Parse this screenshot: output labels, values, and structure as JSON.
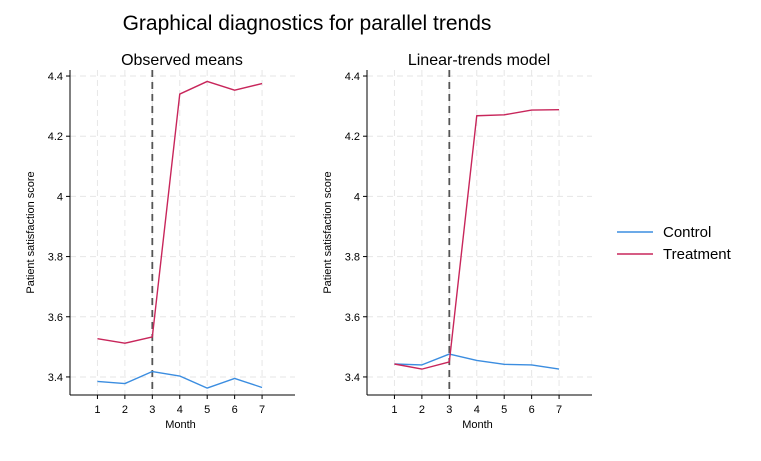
{
  "title": "Graphical diagnostics for parallel trends",
  "colors": {
    "control": "#3b8de0",
    "treatment": "#c8265b",
    "vline": "#555555"
  },
  "legend": {
    "placement": "right",
    "entries": [
      "Control",
      "Treatment"
    ]
  },
  "chart_data": [
    {
      "type": "line",
      "title": "Observed means",
      "xlabel": "Month",
      "ylabel": "Patient satisfaction score",
      "x": [
        1,
        2,
        3,
        4,
        5,
        6,
        7
      ],
      "xlim": [
        0,
        8.2
      ],
      "ylim": [
        3.34,
        4.42
      ],
      "xticks": [
        "1",
        "2",
        "3",
        "4",
        "5",
        "6",
        "7"
      ],
      "yticks": [
        "3.4",
        "3.6",
        "3.8",
        "4",
        "4.2",
        "4.4"
      ],
      "vline": 3,
      "grid": true,
      "series": [
        {
          "name": "Control",
          "values": [
            3.385,
            3.378,
            3.418,
            3.403,
            3.363,
            3.395,
            3.365
          ]
        },
        {
          "name": "Treatment",
          "values": [
            3.527,
            3.512,
            3.533,
            4.34,
            4.382,
            4.353,
            4.375
          ]
        }
      ]
    },
    {
      "type": "line",
      "title": "Linear-trends model",
      "xlabel": "Month",
      "ylabel": "Patient satisfaction score",
      "x": [
        1,
        2,
        3,
        4,
        5,
        6,
        7
      ],
      "xlim": [
        0,
        8.2
      ],
      "ylim": [
        3.34,
        4.42
      ],
      "xticks": [
        "1",
        "2",
        "3",
        "4",
        "5",
        "6",
        "7"
      ],
      "yticks": [
        "3.4",
        "3.6",
        "3.8",
        "4",
        "4.2",
        "4.4"
      ],
      "vline": 3,
      "grid": true,
      "series": [
        {
          "name": "Control",
          "values": [
            3.443,
            3.44,
            3.476,
            3.455,
            3.442,
            3.44,
            3.426
          ]
        },
        {
          "name": "Treatment",
          "values": [
            3.443,
            3.426,
            3.45,
            4.268,
            4.271,
            4.287,
            4.288
          ]
        }
      ]
    }
  ]
}
